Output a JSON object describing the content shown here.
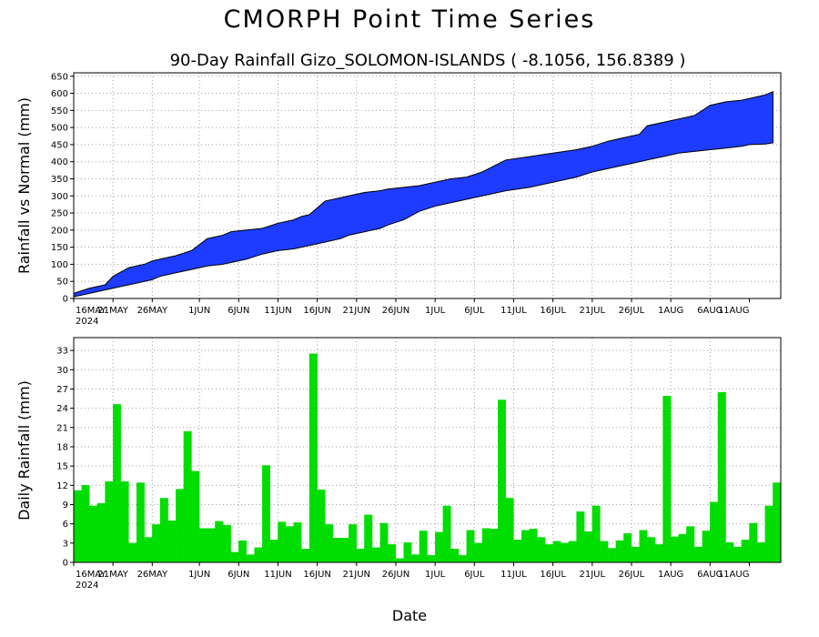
{
  "title": "CMORPH Point Time Series",
  "subtitle": "90-Day Rainfall  Gizo_SOLOMON-ISLANDS ( -8.1056, 156.8389 )",
  "xlabel": "Date",
  "colors": {
    "accumulated": "#1e3cff",
    "daily": "#00dd00",
    "outline": "#000000",
    "grid": "#a0a0a0"
  },
  "x_ticks": [
    "16MAY",
    "21MAY",
    "26MAY",
    "1JUN",
    "6JUN",
    "11JUN",
    "16JUN",
    "21JUN",
    "26JUN",
    "1JUL",
    "6JUL",
    "11JUL",
    "16JUL",
    "21JUL",
    "26JUL",
    "1AUG",
    "6AUG",
    "11AUG"
  ],
  "x_year": "2024",
  "chart_data": [
    {
      "type": "area",
      "ylabel": "Rainfall vs Normal (mm)",
      "ylim": [
        0,
        660
      ],
      "y_ticks": [
        0,
        50,
        100,
        150,
        200,
        250,
        300,
        350,
        400,
        450,
        500,
        550,
        600,
        650
      ],
      "grid": true,
      "note": "Band between accumulated actual rainfall (upper) and accumulated normal rainfall (lower)",
      "x_days": [
        0,
        2,
        4,
        5,
        7,
        9,
        10,
        11,
        13,
        15,
        17,
        19,
        20,
        22,
        24,
        26,
        28,
        29,
        30,
        32,
        34,
        35,
        37,
        39,
        40,
        42,
        44,
        46,
        48,
        50,
        52,
        55,
        58,
        61,
        64,
        66,
        68,
        70,
        72,
        73,
        75,
        77,
        79,
        81,
        83,
        85,
        86,
        88,
        89
      ],
      "upper": [
        15,
        30,
        40,
        65,
        90,
        100,
        110,
        115,
        125,
        140,
        175,
        185,
        195,
        200,
        205,
        220,
        230,
        240,
        245,
        285,
        295,
        300,
        310,
        315,
        320,
        325,
        330,
        340,
        350,
        355,
        370,
        405,
        415,
        425,
        435,
        445,
        460,
        470,
        480,
        505,
        515,
        525,
        535,
        565,
        575,
        580,
        585,
        595,
        605
      ],
      "lower": [
        5,
        15,
        25,
        30,
        40,
        50,
        55,
        65,
        75,
        85,
        95,
        100,
        105,
        115,
        130,
        140,
        145,
        150,
        155,
        165,
        175,
        185,
        195,
        205,
        215,
        230,
        255,
        270,
        280,
        290,
        300,
        315,
        325,
        340,
        355,
        370,
        380,
        390,
        400,
        405,
        415,
        425,
        430,
        435,
        440,
        445,
        450,
        452,
        455
      ]
    },
    {
      "type": "bar",
      "ylabel": "Daily Rainfall (mm)",
      "ylim": [
        0,
        35
      ],
      "y_ticks": [
        0,
        3,
        6,
        9,
        12,
        15,
        18,
        21,
        24,
        27,
        30,
        33
      ],
      "grid": true,
      "values": [
        11.2,
        12,
        8.8,
        9.2,
        12.6,
        24.6,
        12.6,
        3,
        12.4,
        3.9,
        5.9,
        10,
        6.5,
        11.4,
        20.4,
        14.2,
        5.3,
        5.3,
        6.4,
        5.8,
        1.6,
        3.4,
        1.2,
        2.3,
        15.1,
        3.5,
        6.3,
        5.6,
        6.2,
        2.1,
        32.5,
        11.3,
        5.9,
        3.8,
        3.8,
        5.9,
        2.1,
        7.4,
        2.3,
        6.1,
        2.8,
        0.6,
        3.1,
        1.2,
        4.9,
        1.1,
        4.7,
        8.8,
        2.1,
        1.1,
        5,
        3,
        5.3,
        5.2,
        25.3,
        10,
        3.5,
        5,
        5.2,
        3.9,
        2.8,
        3.3,
        3,
        3.3,
        7.9,
        4.8,
        8.8,
        3.3,
        2.2,
        3.4,
        4.5,
        2.4,
        5,
        3.9,
        2.8,
        25.9,
        4,
        4.4,
        5.6,
        2.4,
        4.9,
        9.4,
        26.5,
        3.1,
        2.4,
        3.5,
        6.1,
        3.1,
        8.8,
        12.4
      ]
    }
  ]
}
